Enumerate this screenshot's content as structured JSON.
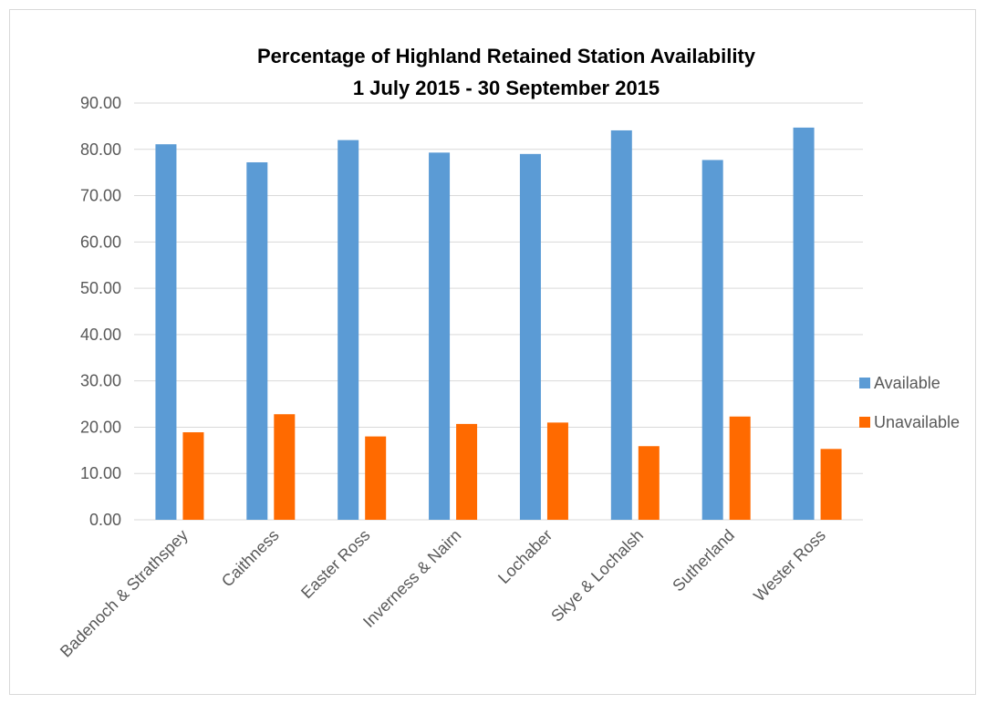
{
  "chart_data": {
    "type": "bar",
    "title": "Percentage of Highland Retained Station Availability",
    "subtitle": "1 July 2015 - 30 September 2015",
    "xlabel": "",
    "ylabel": "",
    "categories": [
      "Badenoch & Strathspey",
      "Caithness",
      "Easter Ross",
      "Inverness & Nairn",
      "Lochaber",
      "Skye & Lochalsh",
      "Sutherland",
      "Wester Ross"
    ],
    "series": [
      {
        "name": "Available",
        "color": "#5b9bd5",
        "values": [
          81.1,
          77.2,
          82.0,
          79.3,
          79.0,
          84.1,
          77.7,
          84.7
        ]
      },
      {
        "name": "Unavailable",
        "color": "#ff6a00",
        "values": [
          18.9,
          22.8,
          18.0,
          20.7,
          21.0,
          15.9,
          22.3,
          15.3
        ]
      }
    ],
    "ylim": [
      0,
      90
    ],
    "yticks": [
      "0.00",
      "10.00",
      "20.00",
      "30.00",
      "40.00",
      "50.00",
      "60.00",
      "70.00",
      "80.00",
      "90.00"
    ],
    "grid": true,
    "legend_position": "right"
  }
}
